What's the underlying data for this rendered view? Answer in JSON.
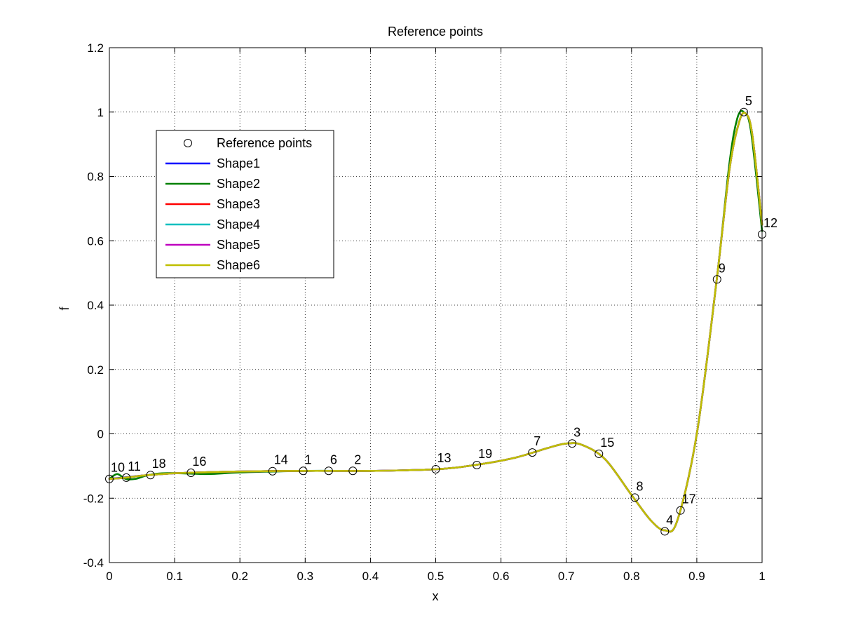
{
  "chart_data": {
    "type": "line",
    "title": "Reference points",
    "xlabel": "x",
    "ylabel": "f",
    "xlim": [
      0,
      1
    ],
    "ylim": [
      -0.4,
      1.2
    ],
    "x_ticks": [
      0,
      0.1,
      0.2,
      0.3,
      0.4,
      0.5,
      0.6,
      0.7,
      0.8,
      0.9,
      1
    ],
    "x_tick_labels": [
      "0",
      "0.1",
      "0.2",
      "0.3",
      "0.4",
      "0.5",
      "0.6",
      "0.7",
      "0.8",
      "0.9",
      "1"
    ],
    "y_ticks": [
      -0.4,
      -0.2,
      0,
      0.2,
      0.4,
      0.6,
      0.8,
      1,
      1.2
    ],
    "y_tick_labels": [
      "-0.4",
      "-0.2",
      "0",
      "0.2",
      "0.4",
      "0.6",
      "0.8",
      "1",
      "1.2"
    ],
    "grid": true,
    "legend_position": "upper-left",
    "reference_points": {
      "name": "Reference points",
      "points": [
        {
          "label": "10",
          "x": 0.0,
          "y": -0.14
        },
        {
          "label": "11",
          "x": 0.026,
          "y": -0.136
        },
        {
          "label": "18",
          "x": 0.063,
          "y": -0.128
        },
        {
          "label": "16",
          "x": 0.125,
          "y": -0.121
        },
        {
          "label": "14",
          "x": 0.25,
          "y": -0.116
        },
        {
          "label": "1",
          "x": 0.297,
          "y": -0.115
        },
        {
          "label": "6",
          "x": 0.336,
          "y": -0.115
        },
        {
          "label": "2",
          "x": 0.373,
          "y": -0.115
        },
        {
          "label": "13",
          "x": 0.5,
          "y": -0.11
        },
        {
          "label": "19",
          "x": 0.563,
          "y": -0.097
        },
        {
          "label": "7",
          "x": 0.648,
          "y": -0.058
        },
        {
          "label": "3",
          "x": 0.709,
          "y": -0.03
        },
        {
          "label": "15",
          "x": 0.75,
          "y": -0.062
        },
        {
          "label": "8",
          "x": 0.805,
          "y": -0.198
        },
        {
          "label": "4",
          "x": 0.851,
          "y": -0.303
        },
        {
          "label": "17",
          "x": 0.875,
          "y": -0.238
        },
        {
          "label": "9",
          "x": 0.931,
          "y": 0.48
        },
        {
          "label": "5",
          "x": 0.972,
          "y": 1.0
        },
        {
          "label": "12",
          "x": 1.0,
          "y": 0.62
        }
      ]
    },
    "series": [
      {
        "name": "Shape1",
        "color": "#0000ff",
        "x": [
          0,
          0.015,
          0.03,
          0.05,
          0.08,
          0.12,
          0.2,
          0.3,
          0.4,
          0.5,
          0.56,
          0.62,
          0.67,
          0.7,
          0.725,
          0.76,
          0.8,
          0.83,
          0.851,
          0.87,
          0.9,
          0.93,
          0.95,
          0.965,
          0.975,
          0.985,
          1.0
        ],
        "y": [
          -0.14,
          -0.137,
          -0.134,
          -0.13,
          -0.125,
          -0.121,
          -0.117,
          -0.115,
          -0.115,
          -0.11,
          -0.097,
          -0.075,
          -0.045,
          -0.03,
          -0.035,
          -0.08,
          -0.19,
          -0.27,
          -0.3,
          -0.27,
          0.0,
          0.47,
          0.82,
          0.97,
          0.995,
          0.93,
          0.65
        ]
      },
      {
        "name": "Shape2",
        "color": "#008000",
        "x": [
          0,
          0.012,
          0.025,
          0.04,
          0.06,
          0.09,
          0.15,
          0.2,
          0.3,
          0.4,
          0.5,
          0.56,
          0.62,
          0.67,
          0.7,
          0.725,
          0.76,
          0.8,
          0.83,
          0.851,
          0.87,
          0.9,
          0.93,
          0.95,
          0.962,
          0.972,
          0.983,
          1.0
        ],
        "y": [
          -0.14,
          -0.125,
          -0.14,
          -0.14,
          -0.128,
          -0.122,
          -0.125,
          -0.12,
          -0.115,
          -0.115,
          -0.11,
          -0.097,
          -0.075,
          -0.045,
          -0.03,
          -0.035,
          -0.08,
          -0.19,
          -0.27,
          -0.3,
          -0.27,
          0.0,
          0.47,
          0.84,
          0.98,
          1.0,
          0.94,
          0.63
        ]
      },
      {
        "name": "Shape3",
        "color": "#ff0000",
        "x": [
          0,
          0.015,
          0.03,
          0.05,
          0.08,
          0.12,
          0.2,
          0.3,
          0.4,
          0.5,
          0.56,
          0.62,
          0.67,
          0.7,
          0.725,
          0.76,
          0.8,
          0.83,
          0.851,
          0.87,
          0.9,
          0.93,
          0.95,
          0.965,
          0.975,
          0.985,
          1.0
        ],
        "y": [
          -0.14,
          -0.138,
          -0.135,
          -0.13,
          -0.125,
          -0.121,
          -0.117,
          -0.115,
          -0.115,
          -0.11,
          -0.097,
          -0.075,
          -0.045,
          -0.03,
          -0.035,
          -0.08,
          -0.19,
          -0.27,
          -0.3,
          -0.27,
          0.0,
          0.47,
          0.82,
          0.97,
          0.995,
          0.93,
          0.65
        ]
      },
      {
        "name": "Shape4",
        "color": "#00bfbf",
        "x": [
          0,
          0.015,
          0.03,
          0.05,
          0.08,
          0.12,
          0.2,
          0.3,
          0.4,
          0.5,
          0.56,
          0.62,
          0.67,
          0.7,
          0.725,
          0.76,
          0.8,
          0.83,
          0.851,
          0.87,
          0.9,
          0.93,
          0.95,
          0.965,
          0.975,
          0.985,
          1.0
        ],
        "y": [
          -0.14,
          -0.138,
          -0.135,
          -0.13,
          -0.125,
          -0.121,
          -0.117,
          -0.115,
          -0.115,
          -0.11,
          -0.097,
          -0.075,
          -0.045,
          -0.03,
          -0.035,
          -0.08,
          -0.19,
          -0.27,
          -0.3,
          -0.27,
          0.0,
          0.47,
          0.82,
          0.97,
          0.995,
          0.93,
          0.65
        ]
      },
      {
        "name": "Shape5",
        "color": "#bf00bf",
        "x": [
          0,
          0.015,
          0.03,
          0.05,
          0.08,
          0.12,
          0.2,
          0.3,
          0.4,
          0.5,
          0.56,
          0.62,
          0.67,
          0.7,
          0.725,
          0.76,
          0.8,
          0.83,
          0.851,
          0.87,
          0.9,
          0.93,
          0.95,
          0.965,
          0.975,
          0.985,
          1.0
        ],
        "y": [
          -0.14,
          -0.138,
          -0.135,
          -0.13,
          -0.125,
          -0.121,
          -0.117,
          -0.115,
          -0.115,
          -0.11,
          -0.097,
          -0.075,
          -0.045,
          -0.03,
          -0.035,
          -0.08,
          -0.19,
          -0.27,
          -0.3,
          -0.27,
          0.0,
          0.47,
          0.82,
          0.97,
          0.995,
          0.93,
          0.65
        ]
      },
      {
        "name": "Shape6",
        "color": "#bfbf00",
        "x": [
          0,
          0.015,
          0.03,
          0.05,
          0.08,
          0.12,
          0.2,
          0.3,
          0.4,
          0.5,
          0.56,
          0.62,
          0.67,
          0.7,
          0.725,
          0.76,
          0.8,
          0.83,
          0.851,
          0.87,
          0.9,
          0.93,
          0.95,
          0.965,
          0.975,
          0.985,
          1.0
        ],
        "y": [
          -0.14,
          -0.138,
          -0.135,
          -0.13,
          -0.125,
          -0.121,
          -0.117,
          -0.115,
          -0.115,
          -0.11,
          -0.097,
          -0.075,
          -0.045,
          -0.03,
          -0.035,
          -0.08,
          -0.19,
          -0.27,
          -0.3,
          -0.27,
          0.0,
          0.47,
          0.82,
          0.97,
          0.995,
          0.93,
          0.65
        ]
      }
    ]
  }
}
